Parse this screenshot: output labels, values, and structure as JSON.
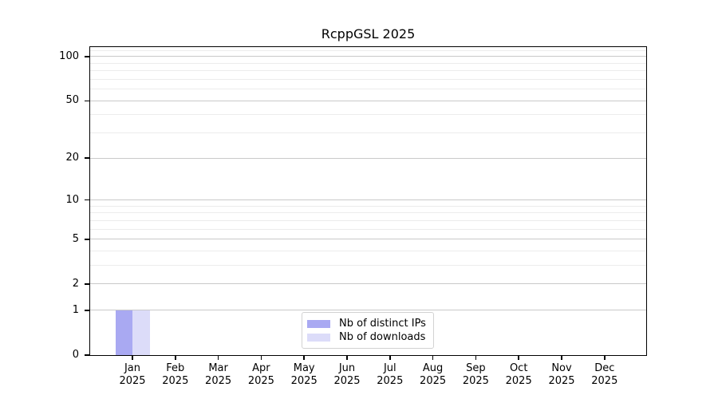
{
  "title": "RcppGSL 2025",
  "legend": {
    "items": [
      {
        "label": "Nb of distinct IPs",
        "color": "#a9a9f2"
      },
      {
        "label": "Nb of downloads",
        "color": "#dcdcf9"
      }
    ]
  },
  "axes": {
    "y_tick_labels": [
      "0",
      "1",
      "2",
      "5",
      "10",
      "20",
      "50",
      "100"
    ],
    "x_month_labels": [
      "Jan",
      "Feb",
      "Mar",
      "Apr",
      "May",
      "Jun",
      "Jul",
      "Aug",
      "Sep",
      "Oct",
      "Nov",
      "Dec"
    ],
    "x_year_label": "2025"
  },
  "chart_data": {
    "type": "bar",
    "title": "RcppGSL 2025",
    "categories": [
      "Jan 2025",
      "Feb 2025",
      "Mar 2025",
      "Apr 2025",
      "May 2025",
      "Jun 2025",
      "Jul 2025",
      "Aug 2025",
      "Sep 2025",
      "Oct 2025",
      "Nov 2025",
      "Dec 2025"
    ],
    "series": [
      {
        "name": "Nb of distinct IPs",
        "color": "#a9a9f2",
        "values": [
          1,
          0,
          0,
          0,
          0,
          0,
          0,
          0,
          0,
          0,
          0,
          0
        ]
      },
      {
        "name": "Nb of downloads",
        "color": "#dcdcf9",
        "values": [
          1,
          0,
          0,
          0,
          0,
          0,
          0,
          0,
          0,
          0,
          0,
          0
        ]
      }
    ],
    "xlabel": "",
    "ylabel": "",
    "yscale": "log1p",
    "ylim": [
      0,
      116
    ],
    "yticks_major": [
      0,
      1,
      2,
      5,
      10,
      20,
      50,
      100
    ],
    "yticks_minor": [
      3,
      4,
      6,
      7,
      8,
      9,
      30,
      40,
      60,
      70,
      80,
      90,
      110
    ],
    "grid": "both",
    "legend_position": "lower-center-inside",
    "bar_layout": "paired, both series side-by-side centered on month tick"
  }
}
